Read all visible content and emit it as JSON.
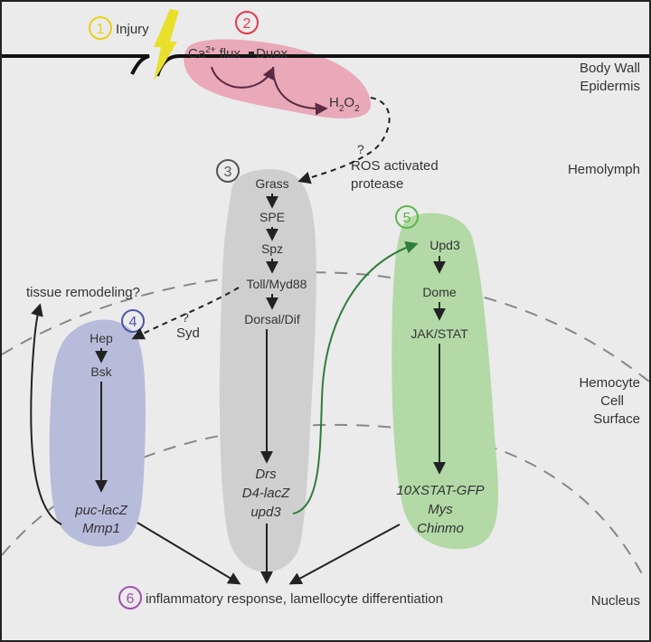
{
  "steps": {
    "s1": {
      "number": "1",
      "label": "Injury",
      "color": "#e8d21a"
    },
    "s2": {
      "number": "2",
      "color": "#e23b4e"
    },
    "s3": {
      "number": "3",
      "color": "#555555"
    },
    "s4": {
      "number": "4",
      "color": "#4a56a6"
    },
    "s5": {
      "number": "5",
      "color": "#5cb84a"
    },
    "s6": {
      "number": "6",
      "label": "inflammatory response, lamellocyte differentiation",
      "color": "#a050b0"
    }
  },
  "compartments": {
    "body_wall_line1": "Body Wall",
    "body_wall_line2": "Epidermis",
    "hemolymph": "Hemolymph",
    "hemocyte_line1": "Hemocyte",
    "hemocyte_line2": "Cell",
    "hemocyte_line3": "Surface",
    "nucleus": "Nucleus"
  },
  "epidermis": {
    "ca": "Ca",
    "ca_sup": "2+",
    "flux": "flux",
    "duox": "Duox",
    "h2o2_h": "H",
    "h2o2_sub": "2",
    "h2o2_o": "O",
    "h2o2_sub2": "2"
  },
  "ros": {
    "q": "?",
    "line1": "ROS activated",
    "line2": "protease"
  },
  "toll": [
    "Grass",
    "SPE",
    "Spz",
    "Toll/Myd88",
    "Dorsal/Dif"
  ],
  "toll_targets": [
    "Drs",
    "D4-lacZ",
    "upd3"
  ],
  "syd": {
    "q": "?",
    "label": "Syd"
  },
  "jnk": [
    "Hep",
    "Bsk"
  ],
  "jnk_targets": [
    "puc-lacZ",
    "Mmp1"
  ],
  "remodel": "tissue remodeling?",
  "jak": [
    "Upd3",
    "Dome",
    "JAK/STAT"
  ],
  "jak_targets": [
    "10XSTAT-GFP",
    "Mys",
    "Chinmo"
  ],
  "colors": {
    "epidermis_fill": "#e9a9b8",
    "toll_fill": "#cfcfcf",
    "jnk_fill": "#b8bcdb",
    "jak_fill": "#b2d9a6",
    "green_arrow": "#2f7d3a",
    "text": "#333333"
  }
}
